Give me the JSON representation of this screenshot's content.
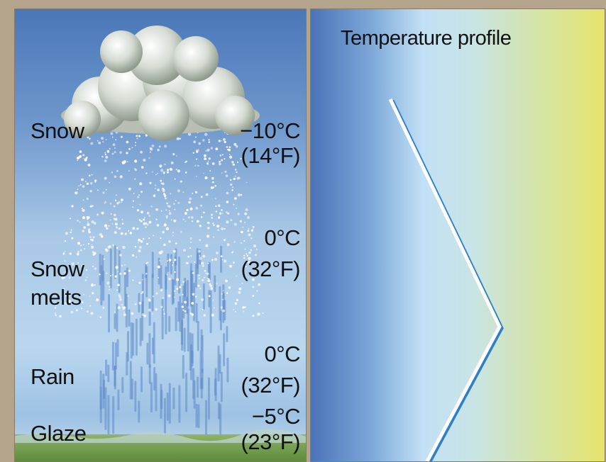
{
  "left_panel": {
    "zones": [
      {
        "label": "Snow",
        "temp_c": "−10°C",
        "temp_f": "(14°F)"
      },
      {
        "label": "Snow melts",
        "line1": "Snow",
        "line2": "melts",
        "temp_c": "0°C",
        "temp_f": "(32°F)"
      },
      {
        "label": "Rain",
        "temp_c": "0°C",
        "temp_f": "(32°F)"
      },
      {
        "label": "Glaze",
        "temp_c": "−5°C",
        "temp_f": "(23°F)"
      }
    ]
  },
  "right_panel": {
    "title": "Temperature profile"
  },
  "colors": {
    "sky_top": "#4a77b8",
    "sky_bottom": "#b9d7ef",
    "cold_side": "#4a74b8",
    "warm_side": "#e7e36c",
    "profile_line": "#ffffff",
    "profile_shadow": "#2e7fc4",
    "ground": "#6f9a4a"
  },
  "icons": [
    "cloud-icon",
    "snowfall",
    "rainfall",
    "ground-glaze"
  ]
}
